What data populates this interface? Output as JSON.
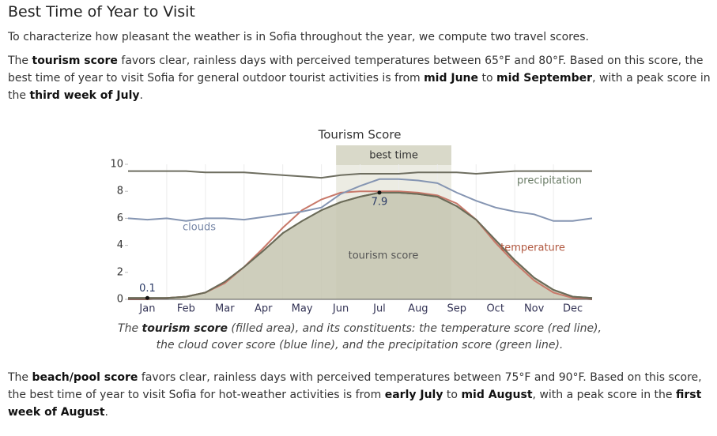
{
  "header": {
    "title": "Best Time of Year to Visit"
  },
  "paragraphs": [
    [
      "To characterize how pleasant the weather is in Sofia throughout the year, we compute two travel scores."
    ],
    [
      "The ",
      "tourism score",
      " favors clear, rainless days with perceived temperatures between 65°F and 80°F. Based on this score, the best time of year to visit Sofia for general outdoor tourist activities is from ",
      "mid June",
      " to ",
      "mid September",
      ", with a peak score in the ",
      "third week of July",
      "."
    ],
    [
      "The ",
      "beach/pool score",
      " favors clear, rainless days with perceived temperatures between 75°F and 90°F. Based on this score, the best time of year to visit Sofia for hot-weather activities is from ",
      "early July",
      " to ",
      "mid August",
      ", with a peak score in the ",
      "first week of August",
      "."
    ]
  ],
  "chart_data": {
    "type": "area",
    "title": "Tourism Score",
    "caption": [
      "The ",
      "tourism score",
      " (filled area), and its constituents: the temperature score (red line), the cloud cover score (blue line), and the precipitation score (green line)."
    ],
    "categories": [
      "Jan",
      "Feb",
      "Mar",
      "Apr",
      "May",
      "Jun",
      "Jul",
      "Aug",
      "Sep",
      "Oct",
      "Nov",
      "Dec"
    ],
    "x": [
      0,
      0.5,
      1,
      1.5,
      2,
      2.5,
      3,
      3.5,
      4,
      4.5,
      5,
      5.5,
      6,
      6.5,
      7,
      7.5,
      8,
      8.5,
      9,
      9.5,
      10,
      10.5,
      11,
      11.5,
      12
    ],
    "xlim": [
      0,
      12
    ],
    "xticks": [
      1,
      2,
      3,
      4,
      5,
      6,
      7,
      8,
      9,
      10,
      11
    ],
    "ylim": [
      0,
      10
    ],
    "yticks": [
      0,
      2,
      4,
      6,
      8,
      10
    ],
    "highlight": {
      "label": "best time",
      "range": [
        5.38,
        8.36
      ]
    },
    "series": [
      {
        "name": "tourism score",
        "color": "#6b6b58",
        "fill": "#c6c6b0",
        "values": [
          0.1,
          0.1,
          0.1,
          0.2,
          0.5,
          1.3,
          2.4,
          3.6,
          4.9,
          5.8,
          6.6,
          7.2,
          7.6,
          7.9,
          7.9,
          7.8,
          7.6,
          6.9,
          5.9,
          4.4,
          2.9,
          1.6,
          0.7,
          0.2,
          0.1
        ]
      },
      {
        "name": "temperature",
        "color": "#c8796a",
        "values": [
          0,
          0,
          0.1,
          0.2,
          0.5,
          1.2,
          2.4,
          3.8,
          5.3,
          6.6,
          7.4,
          7.9,
          8.0,
          8.0,
          8.0,
          7.9,
          7.7,
          7.1,
          5.9,
          4.2,
          2.7,
          1.4,
          0.5,
          0.1,
          0
        ]
      },
      {
        "name": "clouds",
        "color": "#8595b2",
        "values": [
          6.0,
          5.9,
          6.0,
          5.8,
          6.0,
          6.0,
          5.9,
          6.1,
          6.3,
          6.5,
          6.8,
          7.8,
          8.4,
          8.9,
          8.9,
          8.8,
          8.6,
          7.9,
          7.3,
          6.8,
          6.5,
          6.3,
          5.8,
          5.8,
          6.0
        ]
      },
      {
        "name": "precipitation",
        "color": "#6e6e60",
        "values": [
          9.5,
          9.5,
          9.5,
          9.5,
          9.4,
          9.4,
          9.4,
          9.3,
          9.2,
          9.1,
          9.0,
          9.2,
          9.3,
          9.3,
          9.3,
          9.4,
          9.4,
          9.4,
          9.3,
          9.4,
          9.5,
          9.5,
          9.5,
          9.5,
          9.5
        ]
      }
    ]
  }
}
